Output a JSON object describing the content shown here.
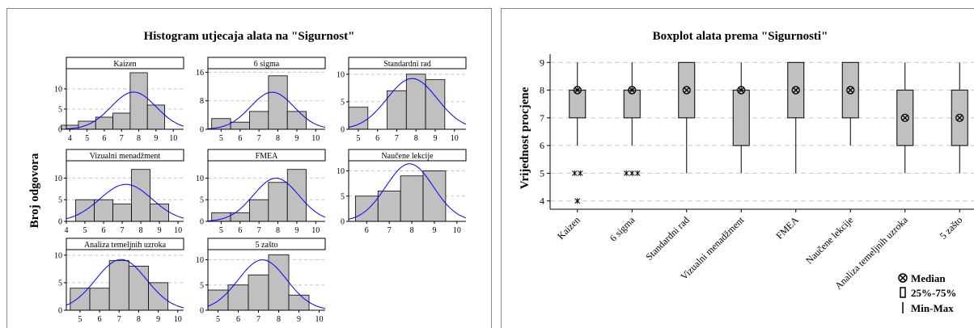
{
  "histogram_panel": {
    "title": "Histogram utjecaja alata na \"Sigurnost\"",
    "ylabel": "Broj odgovora"
  },
  "boxplot_panel": {
    "title": "Boxplot alata prema \"Sigurnosti\"",
    "ylabel": "Vrijednost procjene",
    "legend": {
      "median": "Median",
      "box": "25%-75%",
      "whisker": "Min-Max"
    }
  },
  "colors": {
    "bar_fill": "#c0c0c0",
    "curve": "#0000ff",
    "grid": "#c8c8c8"
  },
  "chart_data": [
    {
      "type": "bar",
      "chart": "histogram",
      "title": "Histogram utjecaja alata na \"Sigurnost\"",
      "ylabel": "Broj odgovora",
      "bin_width": 1,
      "overlay": "normal curve",
      "facets": [
        {
          "name": "Kaizen",
          "xticks": [
            4,
            5,
            6,
            7,
            8,
            9,
            10
          ],
          "xlim": [
            3.8,
            10.6
          ],
          "yticks": [
            0,
            5,
            10
          ],
          "ylim": [
            0,
            15
          ],
          "bins": [
            4,
            5,
            6,
            7,
            8,
            9
          ],
          "counts": [
            1,
            2,
            3,
            4,
            14,
            6
          ],
          "mean": 7.7,
          "sd": 1.3
        },
        {
          "name": "6 sigma",
          "xticks": [
            5,
            6,
            7,
            8,
            9,
            10
          ],
          "xlim": [
            4.3,
            10.5
          ],
          "yticks": [
            0,
            8,
            16
          ],
          "ylim": [
            0,
            17
          ],
          "bins": [
            5,
            6,
            7,
            8,
            9
          ],
          "counts": [
            3,
            2,
            5,
            15,
            5
          ],
          "mean": 7.7,
          "sd": 1.15
        },
        {
          "name": "Standardni rad",
          "xticks": [
            5,
            6,
            7,
            8,
            9,
            10
          ],
          "xlim": [
            4.5,
            10.6
          ],
          "yticks": [
            0,
            5,
            10
          ],
          "ylim": [
            0,
            11
          ],
          "bins": [
            5,
            6,
            7,
            8,
            9
          ],
          "counts": [
            4,
            0,
            7,
            10,
            9
          ],
          "mean": 7.8,
          "sd": 1.3
        },
        {
          "name": "Vizualni menadžment",
          "xticks": [
            4,
            5,
            6,
            7,
            8,
            9,
            10
          ],
          "xlim": [
            4,
            10.3
          ],
          "yticks": [
            0,
            5,
            10
          ],
          "ylim": [
            0,
            14
          ],
          "bins": [
            5,
            6,
            7,
            8,
            9
          ],
          "counts": [
            5,
            5,
            4,
            12,
            4
          ],
          "mean": 7.2,
          "sd": 1.4
        },
        {
          "name": "FMEA",
          "xticks": [
            5,
            6,
            7,
            8,
            9,
            10
          ],
          "xlim": [
            4.3,
            10.5
          ],
          "yticks": [
            0,
            5,
            10
          ],
          "ylim": [
            0,
            14
          ],
          "bins": [
            5,
            6,
            7,
            8,
            9
          ],
          "counts": [
            2,
            2,
            5,
            9,
            12
          ],
          "mean": 7.9,
          "sd": 1.2
        },
        {
          "name": "Naučene lekcije",
          "xticks": [
            6,
            7,
            8,
            9,
            10
          ],
          "xlim": [
            5.2,
            10.4
          ],
          "yticks": [
            0,
            5,
            10
          ],
          "ylim": [
            0,
            12
          ],
          "bins": [
            6,
            7,
            8,
            9
          ],
          "counts": [
            5,
            6,
            9,
            10
          ],
          "mean": 7.9,
          "sd": 1.05
        },
        {
          "name": "Analiza temeljnih uzroka",
          "xticks": [
            5,
            6,
            7,
            8,
            9,
            10
          ],
          "xlim": [
            4.3,
            10.3
          ],
          "yticks": [
            0,
            5,
            10
          ],
          "ylim": [
            0,
            11
          ],
          "bins": [
            5,
            6,
            7,
            8,
            9
          ],
          "counts": [
            4,
            4,
            9,
            8,
            5
          ],
          "mean": 7.1,
          "sd": 1.3
        },
        {
          "name": "5 zašto",
          "xticks": [
            5,
            6,
            7,
            8,
            9,
            10
          ],
          "xlim": [
            4.5,
            10.3
          ],
          "yticks": [
            0,
            5,
            10
          ],
          "ylim": [
            0,
            12
          ],
          "bins": [
            5,
            6,
            7,
            8,
            9
          ],
          "counts": [
            4,
            5,
            7,
            11,
            3
          ],
          "mean": 7.2,
          "sd": 1.2
        }
      ]
    },
    {
      "type": "boxplot",
      "title": "Boxplot alata prema \"Sigurnosti\"",
      "ylabel": "Vrijednost procjene",
      "ylim": [
        3.7,
        9.3
      ],
      "yticks": [
        4,
        5,
        6,
        7,
        8,
        9
      ],
      "grid": true,
      "legend_position": "bottom-right",
      "categories": [
        "Kaizen",
        "6 sigma",
        "Standardni rad",
        "Vizualni menadžment",
        "FMEA",
        "Naučene lekcije",
        "Analiza temeljnih uzroka",
        "5 zašto"
      ],
      "median": [
        8,
        8,
        8,
        8,
        8,
        8,
        7,
        7
      ],
      "q1": [
        7,
        7,
        7,
        6,
        7,
        7,
        6,
        6
      ],
      "q3": [
        8,
        8,
        9,
        8,
        9,
        9,
        8,
        8
      ],
      "min": [
        6,
        6,
        5,
        5,
        5,
        6,
        5,
        5
      ],
      "max": [
        9,
        9,
        9,
        9,
        9,
        9,
        9,
        9
      ],
      "outliers": [
        [
          5,
          5,
          4
        ],
        [
          5,
          5,
          5
        ],
        [],
        [],
        [],
        [],
        [],
        []
      ]
    }
  ]
}
